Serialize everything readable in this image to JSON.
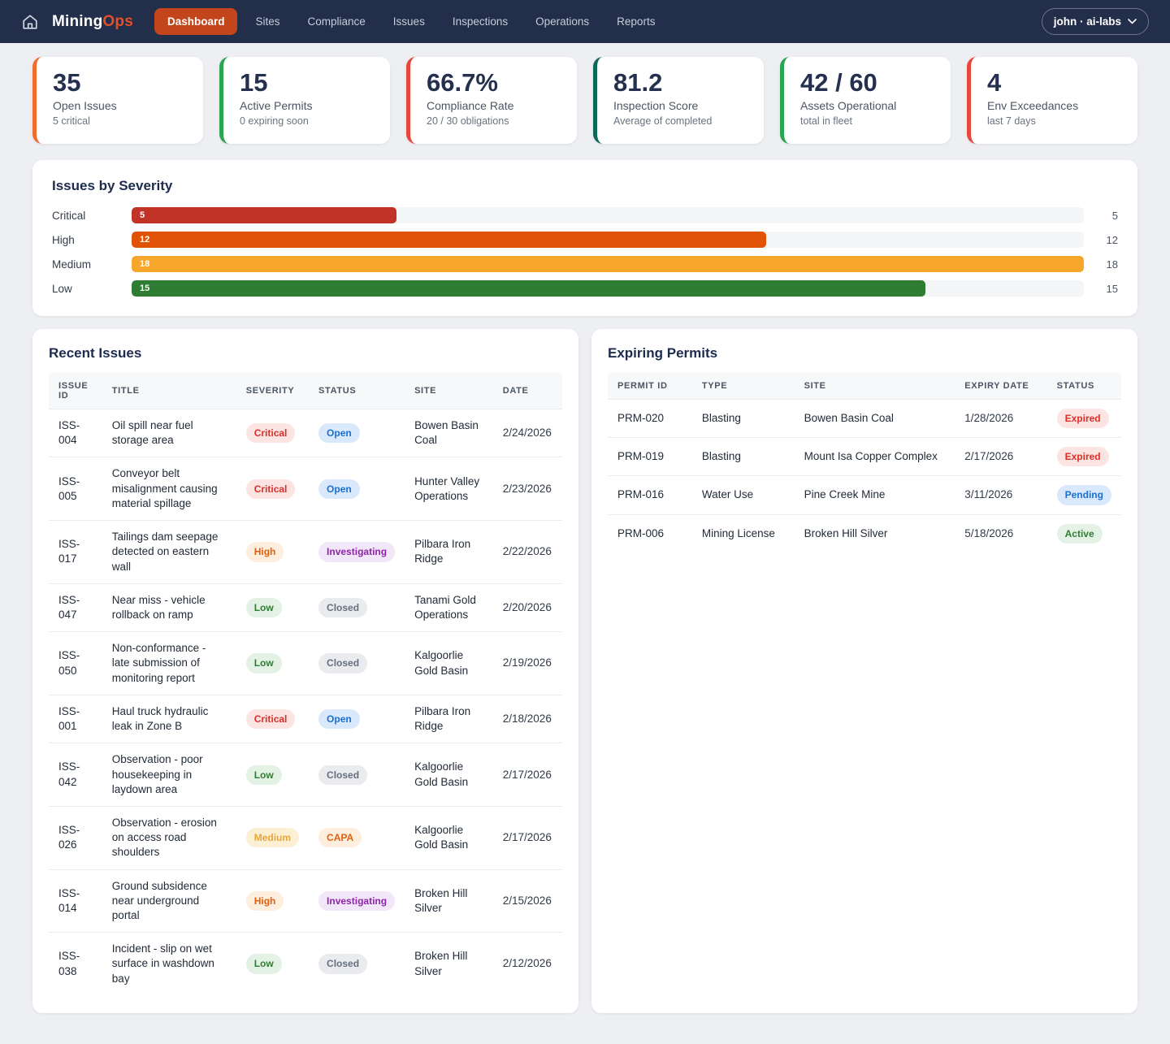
{
  "nav": {
    "brand": {
      "part1": "Mining",
      "part2": "Ops"
    },
    "items": [
      {
        "label": "Dashboard",
        "active": true
      },
      {
        "label": "Sites",
        "active": false
      },
      {
        "label": "Compliance",
        "active": false
      },
      {
        "label": "Issues",
        "active": false
      },
      {
        "label": "Inspections",
        "active": false
      },
      {
        "label": "Operations",
        "active": false
      },
      {
        "label": "Reports",
        "active": false
      }
    ],
    "user_label": "john · ai-labs"
  },
  "kpis": [
    {
      "value": "35",
      "label": "Open Issues",
      "sub": "5 critical",
      "accent": "#ee6e2d"
    },
    {
      "value": "15",
      "label": "Active Permits",
      "sub": "0 expiring soon",
      "accent": "#2aa652"
    },
    {
      "value": "66.7%",
      "label": "Compliance Rate",
      "sub": "20 / 30 obligations",
      "accent": "#e8483c"
    },
    {
      "value": "81.2",
      "label": "Inspection Score",
      "sub": "Average of completed",
      "accent": "#0d6a58"
    },
    {
      "value": "42 / 60",
      "label": "Assets Operational",
      "sub": "total in fleet",
      "accent": "#2aa652"
    },
    {
      "value": "4",
      "label": "Env Exceedances",
      "sub": "last 7 days",
      "accent": "#e8483c"
    }
  ],
  "chart_data": {
    "type": "bar",
    "title": "Issues by Severity",
    "categories": [
      "Critical",
      "High",
      "Medium",
      "Low"
    ],
    "values": [
      5,
      12,
      18,
      15
    ],
    "colors": [
      "#c13327",
      "#e05206",
      "#f7a62c",
      "#2e7d32"
    ],
    "xlim": [
      0,
      18
    ],
    "orientation": "horizontal",
    "value_labels": "inside-left and right edge"
  },
  "recent_issues": {
    "title": "Recent Issues",
    "columns": [
      "ISSUE ID",
      "TITLE",
      "SEVERITY",
      "STATUS",
      "SITE",
      "DATE"
    ],
    "rows": [
      {
        "id": "ISS-004",
        "title": "Oil spill near fuel storage area",
        "severity": "Critical",
        "status": "Open",
        "site": "Bowen Basin Coal",
        "date": "2/24/2026"
      },
      {
        "id": "ISS-005",
        "title": "Conveyor belt misalignment causing material spillage",
        "severity": "Critical",
        "status": "Open",
        "site": "Hunter Valley Operations",
        "date": "2/23/2026"
      },
      {
        "id": "ISS-017",
        "title": "Tailings dam seepage detected on eastern wall",
        "severity": "High",
        "status": "Investigating",
        "site": "Pilbara Iron Ridge",
        "date": "2/22/2026"
      },
      {
        "id": "ISS-047",
        "title": "Near miss - vehicle rollback on ramp",
        "severity": "Low",
        "status": "Closed",
        "site": "Tanami Gold Operations",
        "date": "2/20/2026"
      },
      {
        "id": "ISS-050",
        "title": "Non-conformance - late submission of monitoring report",
        "severity": "Low",
        "status": "Closed",
        "site": "Kalgoorlie Gold Basin",
        "date": "2/19/2026"
      },
      {
        "id": "ISS-001",
        "title": "Haul truck hydraulic leak in Zone B",
        "severity": "Critical",
        "status": "Open",
        "site": "Pilbara Iron Ridge",
        "date": "2/18/2026"
      },
      {
        "id": "ISS-042",
        "title": "Observation - poor housekeeping in laydown area",
        "severity": "Low",
        "status": "Closed",
        "site": "Kalgoorlie Gold Basin",
        "date": "2/17/2026"
      },
      {
        "id": "ISS-026",
        "title": "Observation - erosion on access road shoulders",
        "severity": "Medium",
        "status": "CAPA",
        "site": "Kalgoorlie Gold Basin",
        "date": "2/17/2026"
      },
      {
        "id": "ISS-014",
        "title": "Ground subsidence near underground portal",
        "severity": "High",
        "status": "Investigating",
        "site": "Broken Hill Silver",
        "date": "2/15/2026"
      },
      {
        "id": "ISS-038",
        "title": "Incident - slip on wet surface in washdown bay",
        "severity": "Low",
        "status": "Closed",
        "site": "Broken Hill Silver",
        "date": "2/12/2026"
      }
    ]
  },
  "expiring_permits": {
    "title": "Expiring Permits",
    "columns": [
      "PERMIT ID",
      "TYPE",
      "SITE",
      "EXPIRY DATE",
      "STATUS"
    ],
    "rows": [
      {
        "id": "PRM-020",
        "type": "Blasting",
        "site": "Bowen Basin Coal",
        "expiry": "1/28/2026",
        "status": "Expired"
      },
      {
        "id": "PRM-019",
        "type": "Blasting",
        "site": "Mount Isa Copper Complex",
        "expiry": "2/17/2026",
        "status": "Expired"
      },
      {
        "id": "PRM-016",
        "type": "Water Use",
        "site": "Pine Creek Mine",
        "expiry": "3/11/2026",
        "status": "Pending"
      },
      {
        "id": "PRM-006",
        "type": "Mining License",
        "site": "Broken Hill Silver",
        "expiry": "5/18/2026",
        "status": "Active"
      }
    ]
  }
}
